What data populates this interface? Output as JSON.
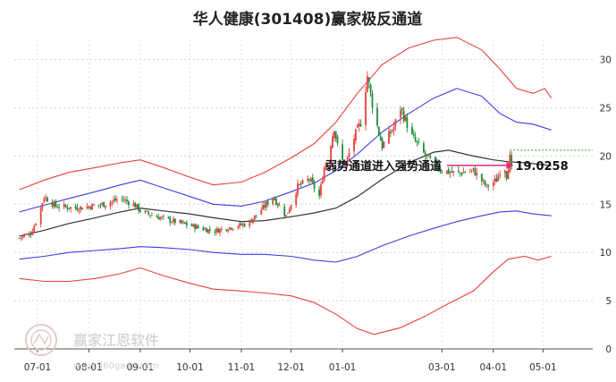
{
  "chart_data": {
    "type": "candlestick",
    "title": "华人健康(301408)赢家极反通道",
    "yticks": [
      0,
      5,
      10,
      15,
      20,
      25,
      30
    ],
    "ylim": [
      0,
      32
    ],
    "xticks": [
      {
        "label": "07-01",
        "date": "2023-07-01"
      },
      {
        "label": "08-01",
        "date": "2023-08-01"
      },
      {
        "label": "09-01",
        "date": "2023-09-01"
      },
      {
        "label": "10-01",
        "date": "2023-10-01"
      },
      {
        "label": "11-01",
        "date": "2023-11-01"
      },
      {
        "label": "12-01",
        "date": "2023-12-01"
      },
      {
        "label": "01-01",
        "date": "2024-01-01"
      },
      {
        "label": "03-01",
        "date": "2024-03-01"
      },
      {
        "label": "04-01",
        "date": "2024-04-01"
      },
      {
        "label": "05-01",
        "date": "2024-05-01"
      }
    ],
    "annotation": {
      "text": "弱势通道进入强势通道",
      "value_label": "19.0258",
      "value": 19.0258,
      "date": "2024-04-10"
    },
    "reference_line": {
      "value": 20.6,
      "start": "2024-04-11",
      "end": "2024-05-31"
    },
    "series": [
      {
        "name": "",
        "role": "outer-upper",
        "color": "#e8413c",
        "points": [
          [
            "2023-06-20",
            16.5
          ],
          [
            "2023-07-05",
            17.5
          ],
          [
            "2023-07-20",
            18.3
          ],
          [
            "2023-08-05",
            18.8
          ],
          [
            "2023-08-20",
            19.3
          ],
          [
            "2023-09-01",
            19.6
          ],
          [
            "2023-09-15",
            18.8
          ],
          [
            "2023-10-01",
            17.8
          ],
          [
            "2023-10-15",
            17.0
          ],
          [
            "2023-11-01",
            17.3
          ],
          [
            "2023-11-15",
            18.3
          ],
          [
            "2023-12-01",
            19.8
          ],
          [
            "2023-12-15",
            21.3
          ],
          [
            "2023-12-28",
            23.5
          ],
          [
            "2024-01-10",
            26.5
          ],
          [
            "2024-01-25",
            29.5
          ],
          [
            "2024-02-10",
            31.2
          ],
          [
            "2024-02-25",
            32.0
          ],
          [
            "2024-03-10",
            32.3
          ],
          [
            "2024-03-25",
            31.0
          ],
          [
            "2024-04-05",
            29.0
          ],
          [
            "2024-04-15",
            27.0
          ],
          [
            "2024-04-25",
            26.5
          ],
          [
            "2024-05-02",
            27.0
          ],
          [
            "2024-05-06",
            26.0
          ]
        ]
      },
      {
        "name": "",
        "role": "inner-upper",
        "color": "#3b3fe0",
        "points": [
          [
            "2023-06-20",
            14.2
          ],
          [
            "2023-07-05",
            14.9
          ],
          [
            "2023-07-20",
            15.6
          ],
          [
            "2023-08-05",
            16.3
          ],
          [
            "2023-08-20",
            17.0
          ],
          [
            "2023-09-01",
            17.5
          ],
          [
            "2023-09-15",
            16.7
          ],
          [
            "2023-10-01",
            15.8
          ],
          [
            "2023-10-15",
            15.0
          ],
          [
            "2023-11-01",
            14.8
          ],
          [
            "2023-11-15",
            15.3
          ],
          [
            "2023-12-01",
            16.3
          ],
          [
            "2023-12-15",
            17.2
          ],
          [
            "2023-12-28",
            18.5
          ],
          [
            "2024-01-10",
            20.2
          ],
          [
            "2024-01-25",
            22.5
          ],
          [
            "2024-02-10",
            24.4
          ],
          [
            "2024-02-25",
            26.0
          ],
          [
            "2024-03-10",
            27.0
          ],
          [
            "2024-03-25",
            26.2
          ],
          [
            "2024-04-05",
            24.4
          ],
          [
            "2024-04-15",
            23.5
          ],
          [
            "2024-04-25",
            23.3
          ],
          [
            "2024-05-06",
            22.7
          ]
        ]
      },
      {
        "name": "",
        "role": "middle",
        "color": "#333333",
        "points": [
          [
            "2023-06-20",
            11.7
          ],
          [
            "2023-07-05",
            12.3
          ],
          [
            "2023-07-20",
            13.0
          ],
          [
            "2023-08-05",
            13.6
          ],
          [
            "2023-08-20",
            14.2
          ],
          [
            "2023-09-01",
            14.6
          ],
          [
            "2023-09-15",
            14.3
          ],
          [
            "2023-10-01",
            14.0
          ],
          [
            "2023-10-15",
            13.6
          ],
          [
            "2023-11-01",
            13.2
          ],
          [
            "2023-11-15",
            13.3
          ],
          [
            "2023-12-01",
            13.7
          ],
          [
            "2023-12-15",
            14.1
          ],
          [
            "2023-12-28",
            14.6
          ],
          [
            "2024-01-10",
            15.8
          ],
          [
            "2024-01-25",
            17.6
          ],
          [
            "2024-02-10",
            19.3
          ],
          [
            "2024-02-25",
            20.4
          ],
          [
            "2024-03-05",
            20.6
          ],
          [
            "2024-03-20",
            20.0
          ],
          [
            "2024-04-01",
            19.6
          ],
          [
            "2024-04-10",
            19.4
          ],
          [
            "2024-04-20",
            19.3
          ],
          [
            "2024-05-06",
            19.0
          ]
        ]
      },
      {
        "name": "",
        "role": "inner-lower",
        "color": "#3b3fe0",
        "points": [
          [
            "2023-06-20",
            9.3
          ],
          [
            "2023-07-05",
            9.6
          ],
          [
            "2023-07-20",
            10.0
          ],
          [
            "2023-08-05",
            10.2
          ],
          [
            "2023-08-20",
            10.4
          ],
          [
            "2023-09-01",
            10.6
          ],
          [
            "2023-09-15",
            10.5
          ],
          [
            "2023-10-01",
            10.3
          ],
          [
            "2023-10-15",
            10.0
          ],
          [
            "2023-11-01",
            9.8
          ],
          [
            "2023-11-15",
            9.8
          ],
          [
            "2023-12-01",
            9.6
          ],
          [
            "2023-12-15",
            9.2
          ],
          [
            "2023-12-28",
            9.0
          ],
          [
            "2024-01-10",
            9.6
          ],
          [
            "2024-01-25",
            10.7
          ],
          [
            "2024-02-10",
            11.7
          ],
          [
            "2024-02-25",
            12.5
          ],
          [
            "2024-03-10",
            13.2
          ],
          [
            "2024-03-25",
            13.8
          ],
          [
            "2024-04-05",
            14.2
          ],
          [
            "2024-04-15",
            14.3
          ],
          [
            "2024-04-25",
            14.0
          ],
          [
            "2024-05-06",
            13.8
          ]
        ]
      },
      {
        "name": "",
        "role": "outer-lower",
        "color": "#e8413c",
        "points": [
          [
            "2023-06-20",
            7.3
          ],
          [
            "2023-07-05",
            7.0
          ],
          [
            "2023-07-20",
            7.0
          ],
          [
            "2023-08-05",
            7.3
          ],
          [
            "2023-08-20",
            7.8
          ],
          [
            "2023-09-01",
            8.4
          ],
          [
            "2023-09-15",
            7.6
          ],
          [
            "2023-10-01",
            6.8
          ],
          [
            "2023-10-15",
            6.2
          ],
          [
            "2023-11-01",
            6.0
          ],
          [
            "2023-11-15",
            5.8
          ],
          [
            "2023-12-01",
            5.5
          ],
          [
            "2023-12-15",
            4.8
          ],
          [
            "2023-12-28",
            3.6
          ],
          [
            "2024-01-10",
            2.1
          ],
          [
            "2024-01-20",
            1.5
          ],
          [
            "2024-02-05",
            2.2
          ],
          [
            "2024-02-20",
            3.4
          ],
          [
            "2024-03-05",
            4.7
          ],
          [
            "2024-03-20",
            6.0
          ],
          [
            "2024-04-01",
            8.0
          ],
          [
            "2024-04-10",
            9.3
          ],
          [
            "2024-04-20",
            9.6
          ],
          [
            "2024-04-28",
            9.2
          ],
          [
            "2024-05-06",
            9.6
          ]
        ]
      }
    ],
    "price_anchors": [
      [
        "2023-06-20",
        11.5
      ],
      [
        "2023-06-27",
        12.0
      ],
      [
        "2023-07-01",
        13.5
      ],
      [
        "2023-07-05",
        15.8
      ],
      [
        "2023-07-12",
        14.8
      ],
      [
        "2023-07-25",
        14.6
      ],
      [
        "2023-08-10",
        15.0
      ],
      [
        "2023-08-20",
        15.6
      ],
      [
        "2023-08-28",
        15.0
      ],
      [
        "2023-09-02",
        14.2
      ],
      [
        "2023-09-15",
        13.5
      ],
      [
        "2023-10-01",
        12.8
      ],
      [
        "2023-10-15",
        12.2
      ],
      [
        "2023-10-25",
        12.6
      ],
      [
        "2023-11-05",
        13.0
      ],
      [
        "2023-11-15",
        14.8
      ],
      [
        "2023-11-20",
        15.8
      ],
      [
        "2023-11-28",
        13.8
      ],
      [
        "2023-12-05",
        16.8
      ],
      [
        "2023-12-12",
        17.6
      ],
      [
        "2023-12-18",
        15.8
      ],
      [
        "2023-12-21",
        18.8
      ],
      [
        "2023-12-24",
        20.5
      ],
      [
        "2023-12-27",
        23.0
      ],
      [
        "2023-12-30",
        20.0
      ],
      [
        "2024-01-03",
        19.0
      ],
      [
        "2024-01-07",
        21.5
      ],
      [
        "2024-01-12",
        23.5
      ],
      [
        "2024-01-16",
        28.3
      ],
      [
        "2024-01-20",
        24.5
      ],
      [
        "2024-01-25",
        21.0
      ],
      [
        "2024-02-01",
        23.0
      ],
      [
        "2024-02-05",
        25.0
      ],
      [
        "2024-02-12",
        22.0
      ],
      [
        "2024-02-20",
        20.0
      ],
      [
        "2024-03-01",
        18.5
      ],
      [
        "2024-03-10",
        18.2
      ],
      [
        "2024-03-20",
        18.5
      ],
      [
        "2024-03-28",
        16.8
      ],
      [
        "2024-04-03",
        17.5
      ],
      [
        "2024-04-07",
        19.5
      ],
      [
        "2024-04-09",
        18.0
      ],
      [
        "2024-04-11",
        19.8
      ],
      [
        "2024-04-13",
        17.5
      ]
    ]
  },
  "watermark": {
    "brand": "赢家江恩软件",
    "url": "www.360gann.com"
  },
  "colors": {
    "up": "#e8413c",
    "down": "#1e8c3a",
    "ref": "#2e9e44",
    "anno": "#e8277a"
  }
}
